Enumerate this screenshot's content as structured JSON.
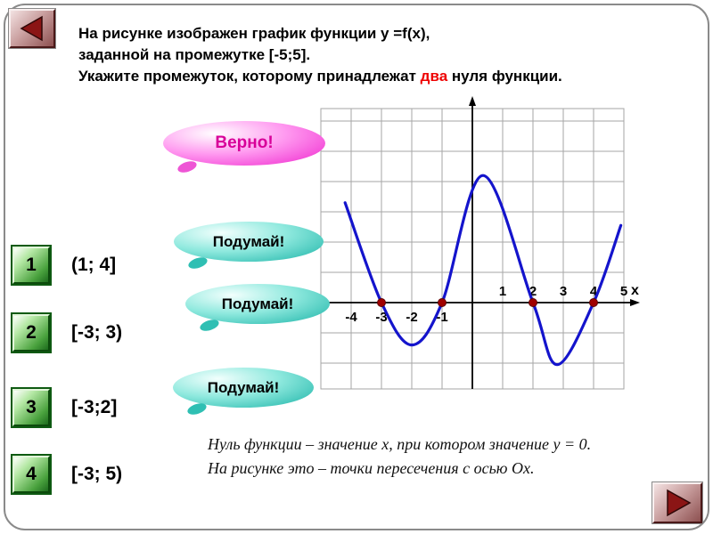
{
  "slide": {
    "title_line1": "На рисунке изображен график функции у =f(x),",
    "title_line2": "заданной на промежутке [-5;5].",
    "title_line3_pre": "Укажите промежуток, которому принадлежат ",
    "title_line3_highlight": "два",
    "title_line3_post": " нуля функции."
  },
  "callouts": {
    "correct": "Верно!",
    "think1": "Подумай!",
    "think2": "Подумай!",
    "think3": "Подумай!"
  },
  "answers": [
    {
      "number": "1",
      "label": "(1; 4]"
    },
    {
      "number": "2",
      "label": "[-3; 3)"
    },
    {
      "number": "3",
      "label": "[-3;2]"
    },
    {
      "number": "4",
      "label": "[-3; 5)"
    }
  ],
  "definition": {
    "line1": "Нуль функции – значение х, при котором значение у = 0.",
    "line2": "На рисунке это – точки пересечения с осью Ох."
  },
  "chart_data": {
    "type": "line",
    "title": "График функции y = f(x) на промежутке [-5;5]",
    "xlabel": "х",
    "xlim": [
      -5,
      5
    ],
    "grid": true,
    "x_ticks": [
      {
        "label": "-4",
        "x": -4
      },
      {
        "label": "-3",
        "x": -3
      },
      {
        "label": "-2",
        "x": -2
      },
      {
        "label": "-1",
        "x": -1
      },
      {
        "label": "1",
        "x": 1
      },
      {
        "label": "2",
        "x": 2
      },
      {
        "label": "3",
        "x": 3
      },
      {
        "label": "4",
        "x": 4
      },
      {
        "label": "5",
        "x": 5
      }
    ],
    "zeros": [
      -3,
      -1,
      2,
      4
    ],
    "curve_points": [
      [
        -4.2,
        3.3
      ],
      [
        -3,
        0
      ],
      [
        -2,
        -1.4
      ],
      [
        -1,
        0
      ],
      [
        0.35,
        4.2
      ],
      [
        2,
        0
      ],
      [
        2.8,
        -2.05
      ],
      [
        4,
        0
      ],
      [
        4.9,
        2.55
      ]
    ],
    "curve_color": "#1414cc",
    "zero_marker_color": "#a00000",
    "axis_color": "#000000",
    "grid_color": "#a6a6a6"
  },
  "colors": {
    "highlight_red": "#ee0000",
    "correct_magenta": "#ee22cc",
    "think_teal": "#18b2a6",
    "answer_green": "#2f8f2f",
    "nav_maroon": "#8b1515"
  }
}
